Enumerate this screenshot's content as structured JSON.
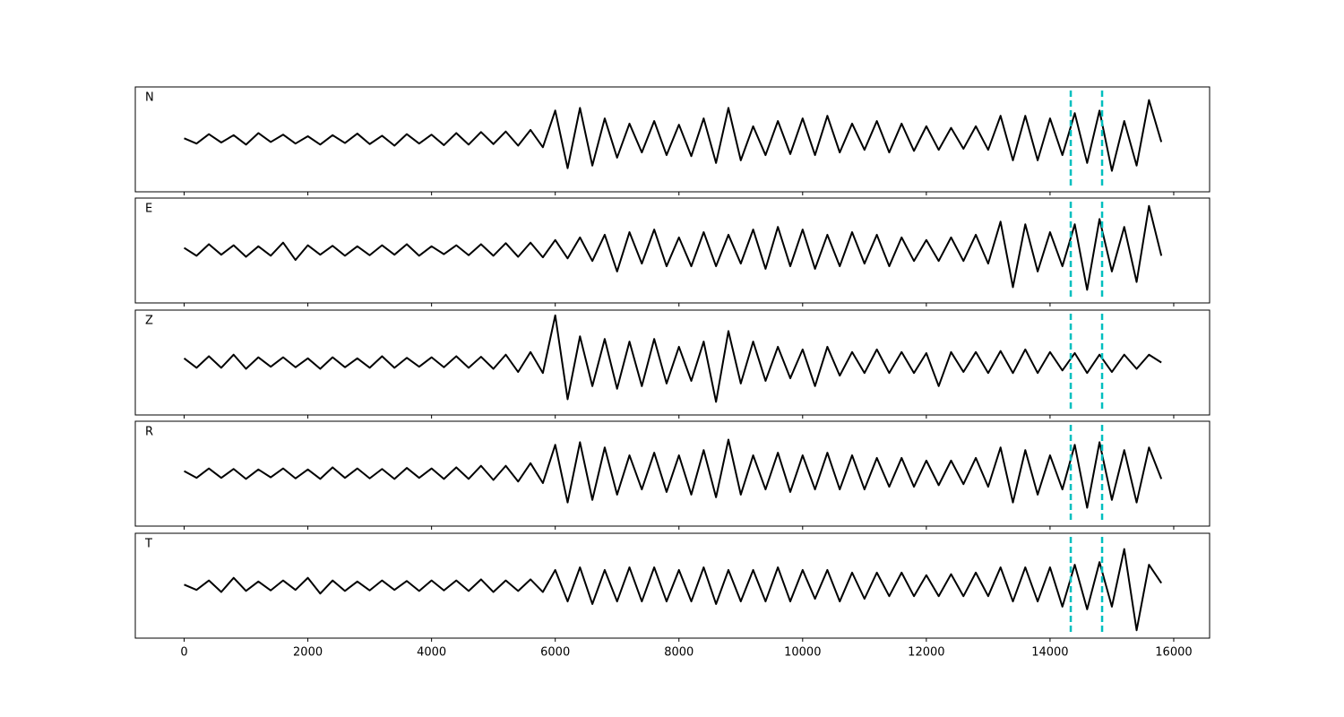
{
  "chart_data": {
    "type": "line",
    "x": [
      0,
      200,
      400,
      600,
      800,
      1000,
      1200,
      1400,
      1600,
      1800,
      2000,
      2200,
      2400,
      2600,
      2800,
      3000,
      3200,
      3400,
      3600,
      3800,
      4000,
      4200,
      4400,
      4600,
      4800,
      5000,
      5200,
      5400,
      5600,
      5800,
      6000,
      6200,
      6400,
      6600,
      6800,
      7000,
      7200,
      7400,
      7600,
      7800,
      8000,
      8200,
      8400,
      8600,
      8800,
      9000,
      9200,
      9400,
      9600,
      9800,
      10000,
      10200,
      10400,
      10600,
      10800,
      11000,
      11200,
      11400,
      11600,
      11800,
      12000,
      12200,
      12400,
      12600,
      12800,
      13000,
      13200,
      13400,
      13600,
      13800,
      14000,
      14200,
      14400,
      14600,
      14800,
      15000,
      15200,
      15400,
      15600,
      15800
    ],
    "xlim": [
      -790,
      16580
    ],
    "xticks": [
      0,
      2000,
      4000,
      6000,
      8000,
      10000,
      12000,
      14000,
      16000
    ],
    "ylim": [
      -1,
      1
    ],
    "vlines": [
      14335,
      14842
    ],
    "vline_color": "#00bfbf",
    "series": [
      {
        "name": "N",
        "color": "#000000",
        "values": [
          0.02,
          -0.08,
          0.1,
          -0.06,
          0.08,
          -0.1,
          0.12,
          -0.05,
          0.09,
          -0.08,
          0.06,
          -0.1,
          0.08,
          -0.07,
          0.11,
          -0.09,
          0.07,
          -0.12,
          0.1,
          -0.08,
          0.09,
          -0.11,
          0.12,
          -0.1,
          0.14,
          -0.09,
          0.15,
          -0.12,
          0.18,
          -0.15,
          0.55,
          -0.55,
          0.6,
          -0.5,
          0.4,
          -0.35,
          0.3,
          -0.25,
          0.35,
          -0.3,
          0.28,
          -0.32,
          0.4,
          -0.45,
          0.6,
          -0.4,
          0.25,
          -0.3,
          0.35,
          -0.28,
          0.4,
          -0.3,
          0.45,
          -0.25,
          0.3,
          -0.2,
          0.35,
          -0.25,
          0.3,
          -0.22,
          0.25,
          -0.2,
          0.22,
          -0.18,
          0.25,
          -0.2,
          0.45,
          -0.4,
          0.45,
          -0.4,
          0.4,
          -0.3,
          0.5,
          -0.45,
          0.55,
          -0.6,
          0.35,
          -0.5,
          0.75,
          -0.05
        ]
      },
      {
        "name": "E",
        "color": "#000000",
        "values": [
          0.05,
          -0.1,
          0.12,
          -0.08,
          0.1,
          -0.12,
          0.08,
          -0.1,
          0.15,
          -0.18,
          0.1,
          -0.08,
          0.09,
          -0.1,
          0.08,
          -0.09,
          0.1,
          -0.08,
          0.12,
          -0.1,
          0.08,
          -0.07,
          0.1,
          -0.09,
          0.12,
          -0.1,
          0.14,
          -0.12,
          0.15,
          -0.13,
          0.2,
          -0.15,
          0.25,
          -0.2,
          0.3,
          -0.4,
          0.35,
          -0.25,
          0.4,
          -0.3,
          0.25,
          -0.3,
          0.35,
          -0.3,
          0.3,
          -0.25,
          0.4,
          -0.35,
          0.45,
          -0.3,
          0.4,
          -0.35,
          0.3,
          -0.3,
          0.35,
          -0.25,
          0.3,
          -0.3,
          0.25,
          -0.2,
          0.2,
          -0.2,
          0.25,
          -0.2,
          0.3,
          -0.25,
          0.55,
          -0.7,
          0.5,
          -0.4,
          0.35,
          -0.3,
          0.5,
          -0.75,
          0.6,
          -0.4,
          0.45,
          -0.6,
          0.85,
          -0.1
        ]
      },
      {
        "name": "Z",
        "color": "#000000",
        "values": [
          0.08,
          -0.1,
          0.12,
          -0.1,
          0.15,
          -0.12,
          0.1,
          -0.08,
          0.1,
          -0.09,
          0.08,
          -0.12,
          0.1,
          -0.09,
          0.08,
          -0.1,
          0.12,
          -0.1,
          0.09,
          -0.08,
          0.1,
          -0.09,
          0.12,
          -0.1,
          0.11,
          -0.12,
          0.15,
          -0.18,
          0.2,
          -0.2,
          0.9,
          -0.7,
          0.5,
          -0.45,
          0.45,
          -0.5,
          0.4,
          -0.45,
          0.45,
          -0.4,
          0.3,
          -0.35,
          0.4,
          -0.75,
          0.6,
          -0.4,
          0.4,
          -0.35,
          0.3,
          -0.3,
          0.25,
          -0.45,
          0.3,
          -0.25,
          0.2,
          -0.2,
          0.25,
          -0.2,
          0.2,
          -0.2,
          0.18,
          -0.45,
          0.2,
          -0.18,
          0.2,
          -0.2,
          0.22,
          -0.2,
          0.25,
          -0.2,
          0.2,
          -0.15,
          0.18,
          -0.2,
          0.15,
          -0.18,
          0.15,
          -0.12,
          0.15,
          0.0
        ]
      },
      {
        "name": "R",
        "color": "#000000",
        "values": [
          0.05,
          -0.08,
          0.1,
          -0.08,
          0.09,
          -0.1,
          0.08,
          -0.07,
          0.1,
          -0.09,
          0.08,
          -0.1,
          0.12,
          -0.08,
          0.1,
          -0.09,
          0.09,
          -0.1,
          0.11,
          -0.08,
          0.1,
          -0.1,
          0.12,
          -0.1,
          0.15,
          -0.12,
          0.15,
          -0.15,
          0.2,
          -0.18,
          0.55,
          -0.55,
          0.6,
          -0.5,
          0.5,
          -0.4,
          0.35,
          -0.3,
          0.4,
          -0.35,
          0.35,
          -0.4,
          0.45,
          -0.45,
          0.65,
          -0.4,
          0.35,
          -0.3,
          0.4,
          -0.35,
          0.35,
          -0.3,
          0.4,
          -0.3,
          0.35,
          -0.3,
          0.3,
          -0.25,
          0.3,
          -0.25,
          0.25,
          -0.22,
          0.25,
          -0.2,
          0.3,
          -0.25,
          0.5,
          -0.55,
          0.45,
          -0.4,
          0.35,
          -0.3,
          0.55,
          -0.65,
          0.6,
          -0.5,
          0.45,
          -0.55,
          0.5,
          -0.1
        ]
      },
      {
        "name": "T",
        "color": "#000000",
        "values": [
          0.02,
          -0.08,
          0.1,
          -0.12,
          0.15,
          -0.1,
          0.08,
          -0.09,
          0.1,
          -0.08,
          0.15,
          -0.15,
          0.1,
          -0.1,
          0.08,
          -0.09,
          0.1,
          -0.08,
          0.09,
          -0.1,
          0.1,
          -0.09,
          0.1,
          -0.1,
          0.12,
          -0.12,
          0.1,
          -0.1,
          0.12,
          -0.12,
          0.3,
          -0.3,
          0.35,
          -0.35,
          0.3,
          -0.3,
          0.35,
          -0.3,
          0.35,
          -0.3,
          0.3,
          -0.3,
          0.35,
          -0.35,
          0.3,
          -0.3,
          0.3,
          -0.3,
          0.35,
          -0.3,
          0.3,
          -0.25,
          0.3,
          -0.3,
          0.25,
          -0.25,
          0.25,
          -0.2,
          0.25,
          -0.2,
          0.2,
          -0.2,
          0.22,
          -0.2,
          0.25,
          -0.2,
          0.35,
          -0.3,
          0.35,
          -0.3,
          0.35,
          -0.4,
          0.4,
          -0.45,
          0.45,
          -0.4,
          0.7,
          -0.85,
          0.4,
          0.05
        ]
      }
    ]
  }
}
